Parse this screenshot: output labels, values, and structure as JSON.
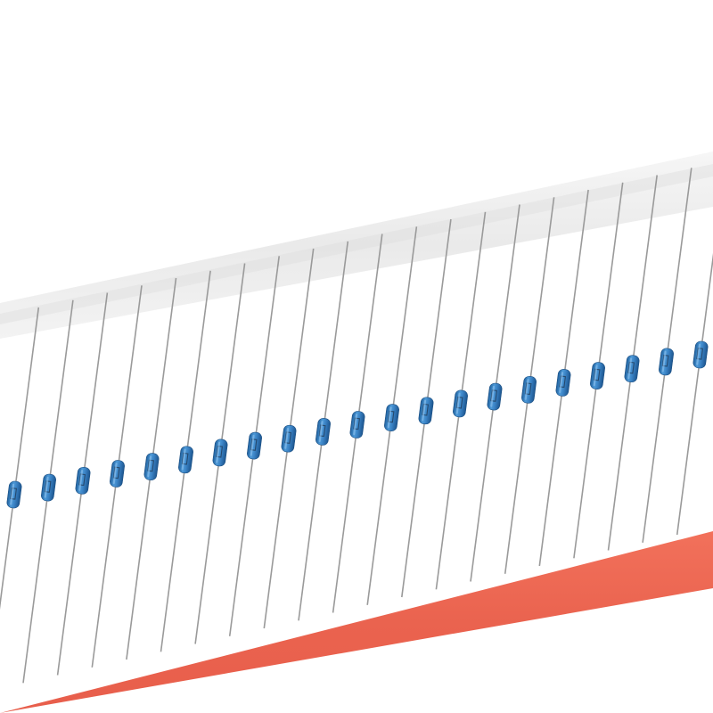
{
  "scene": {
    "background_color": "#ffffff",
    "top_tape_color": "#eeeeee",
    "bottom_tape_color": "#ee6a55",
    "lead_color": "#9a9a9a",
    "component_body_color": "#3a82c4",
    "component_marking_color": "#1f3550",
    "component_count": 21
  }
}
